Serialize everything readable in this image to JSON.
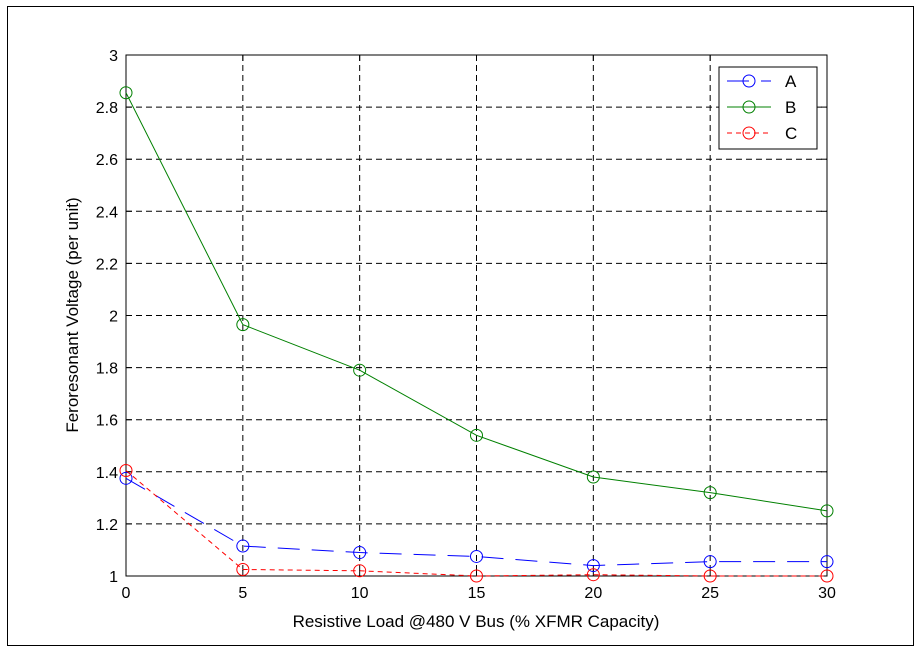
{
  "chart_data": {
    "type": "line",
    "title": "",
    "xlabel": "Resistive Load @480 V Bus (% XFMR Capacity)",
    "ylabel": "Feroresonant Voltage (per unit)",
    "xlim": [
      0,
      30
    ],
    "ylim": [
      1,
      3
    ],
    "xticks": [
      "0",
      "5",
      "10",
      "15",
      "20",
      "25",
      "30"
    ],
    "yticks": [
      "1",
      "1.2",
      "1.4",
      "1.6",
      "1.8",
      "2",
      "2.2",
      "2.4",
      "2.6",
      "2.8",
      "3"
    ],
    "grid": true,
    "legend_position": "top-right",
    "x": [
      0,
      5,
      10,
      15,
      20,
      25,
      30
    ],
    "series": [
      {
        "name": "A",
        "color": "#0000ff",
        "dash": "long-dash",
        "marker": "circle",
        "values": [
          1.375,
          1.115,
          1.09,
          1.075,
          1.04,
          1.055,
          1.055
        ]
      },
      {
        "name": "B",
        "color": "#008000",
        "dash": "solid",
        "marker": "circle",
        "values": [
          2.855,
          1.965,
          1.79,
          1.54,
          1.38,
          1.32,
          1.25
        ]
      },
      {
        "name": "C",
        "color": "#ff0000",
        "dash": "short-dash",
        "marker": "circle",
        "values": [
          1.405,
          1.025,
          1.02,
          1.0,
          1.005,
          1.0,
          1.0
        ]
      }
    ]
  }
}
